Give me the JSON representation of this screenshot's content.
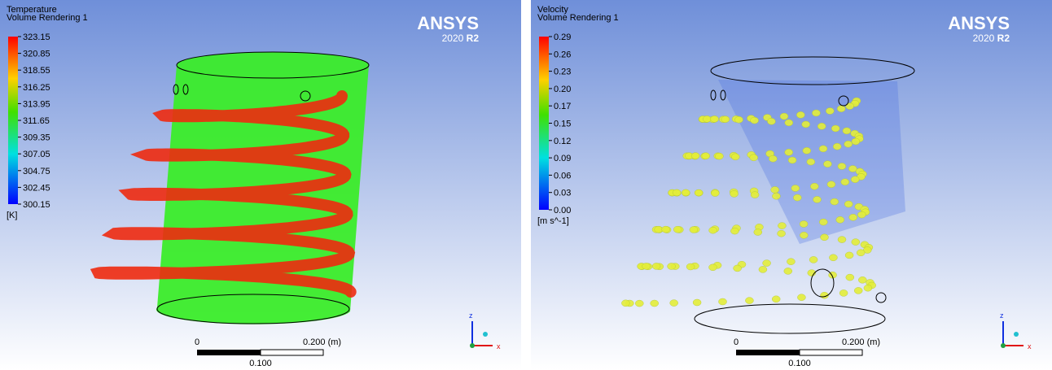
{
  "panels": [
    {
      "legend": {
        "title": "Temperature",
        "subtitle": "Volume Rendering 1",
        "ticks": [
          "323.15",
          "320.85",
          "318.55",
          "316.25",
          "313.95",
          "311.65",
          "309.35",
          "307.05",
          "304.75",
          "302.45",
          "300.15"
        ],
        "unit": "[K]"
      },
      "logo": {
        "brand": "ANSYS",
        "version": "2020",
        "release": "R2"
      },
      "scale": {
        "start": "0",
        "end": "0.200",
        "unit": "(m)",
        "mid": "0.100"
      },
      "axes": {
        "z": "z",
        "x": "x"
      }
    },
    {
      "legend": {
        "title": "Velocity",
        "subtitle": "Volume Rendering 1",
        "ticks": [
          "0.29",
          "0.26",
          "0.23",
          "0.20",
          "0.17",
          "0.15",
          "0.12",
          "0.09",
          "0.06",
          "0.03",
          "0.00"
        ],
        "unit": "[m s^-1]"
      },
      "logo": {
        "brand": "ANSYS",
        "version": "2020",
        "release": "R2"
      },
      "scale": {
        "start": "0",
        "end": "0.200",
        "unit": "(m)",
        "mid": "0.100"
      },
      "axes": {
        "z": "z",
        "x": "x"
      }
    }
  ]
}
